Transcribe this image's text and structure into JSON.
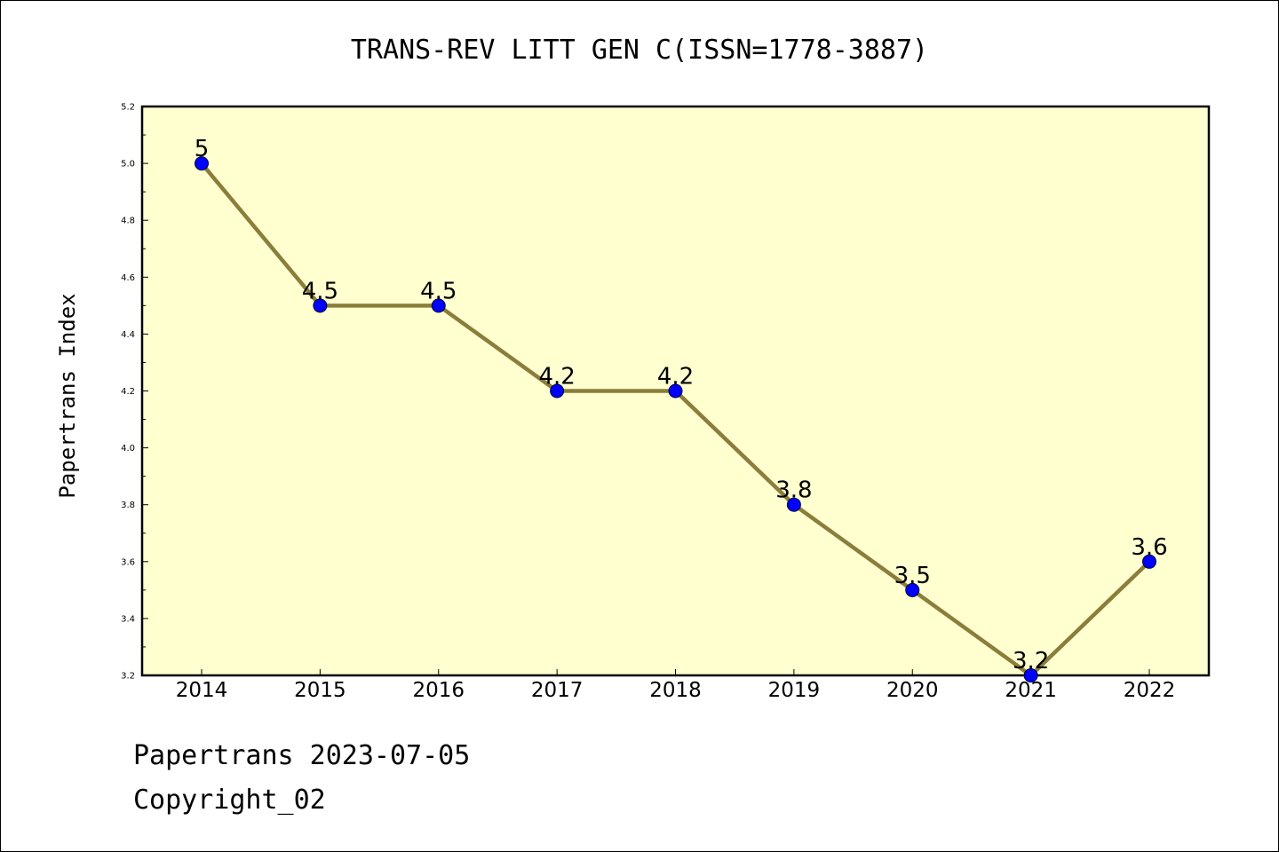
{
  "chart_data": {
    "type": "line",
    "title": "TRANS-REV LITT GEN C(ISSN=1778-3887)",
    "ylabel": "Papertrans Index",
    "xlabel": "",
    "categories": [
      "2014",
      "2015",
      "2016",
      "2017",
      "2018",
      "2019",
      "2020",
      "2021",
      "2022"
    ],
    "values": [
      5,
      4.5,
      4.5,
      4.2,
      4.2,
      3.8,
      3.5,
      3.2,
      3.6
    ],
    "data_labels": [
      "5",
      "4.5",
      "4.5",
      "4.2",
      "4.2",
      "3.8",
      "3.5",
      "3.2",
      "3.6"
    ],
    "ylim": [
      3.2,
      5.2
    ],
    "yticks": [
      "3.2",
      "3.4",
      "3.6",
      "3.8",
      "4.0",
      "4.2",
      "4.4",
      "4.6",
      "4.8",
      "5.0",
      "5.2"
    ],
    "grid": false,
    "colors": {
      "plot_background": "#ffffd0",
      "line": "#8b7d3a",
      "marker": "#0000ff"
    }
  },
  "footer": {
    "line1": "Papertrans 2023-07-05",
    "line2": "Copyright_02"
  }
}
